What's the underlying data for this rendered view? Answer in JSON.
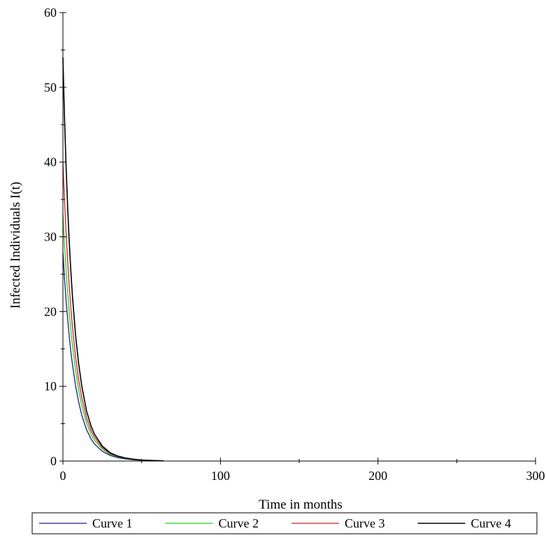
{
  "chart_data": {
    "type": "line",
    "title": "",
    "xlabel": "Time in months",
    "ylabel": "Infected Individuals I(t)",
    "xlim": [
      0,
      300
    ],
    "ylim": [
      0,
      60
    ],
    "xticks": [
      0,
      100,
      200,
      300
    ],
    "yticks": [
      0,
      10,
      20,
      30,
      40,
      50,
      60
    ],
    "grid": false,
    "legend_position": "bottom",
    "series": [
      {
        "name": "Curve 1",
        "color": "#1a1a8c",
        "x": [
          0,
          1,
          2,
          3,
          4,
          5,
          6,
          8,
          10,
          12,
          15,
          18,
          20,
          25,
          30,
          35,
          40,
          45,
          50,
          55,
          60,
          64
        ],
        "y": [
          28,
          24.5,
          21.5,
          19,
          16.7,
          14.7,
          13,
          10.1,
          7.9,
          6.1,
          4.2,
          2.9,
          2.3,
          1.3,
          0.75,
          0.45,
          0.27,
          0.17,
          0.1,
          0.06,
          0.04,
          0.03
        ]
      },
      {
        "name": "Curve 2",
        "color": "#22cc22",
        "x": [
          0,
          1,
          2,
          3,
          4,
          5,
          6,
          8,
          10,
          12,
          15,
          18,
          20,
          25,
          30,
          35,
          40,
          45,
          50,
          55,
          60,
          64
        ],
        "y": [
          33,
          29,
          25.6,
          22.6,
          19.9,
          17.6,
          15.6,
          12.2,
          9.5,
          7.4,
          5.1,
          3.5,
          2.8,
          1.6,
          0.9,
          0.55,
          0.33,
          0.2,
          0.12,
          0.07,
          0.05,
          0.03
        ]
      },
      {
        "name": "Curve 3",
        "color": "#cc2222",
        "x": [
          0,
          1,
          2,
          3,
          4,
          5,
          6,
          8,
          10,
          12,
          15,
          18,
          20,
          25,
          30,
          35,
          40,
          45,
          50,
          55,
          60,
          64
        ],
        "y": [
          40,
          35,
          30.6,
          26.8,
          23.5,
          20.6,
          18.1,
          14,
          10.9,
          8.5,
          5.8,
          4,
          3.2,
          1.8,
          1,
          0.6,
          0.36,
          0.22,
          0.13,
          0.08,
          0.05,
          0.03
        ]
      },
      {
        "name": "Curve 4",
        "color": "#000000",
        "x": [
          0,
          1,
          2,
          3,
          4,
          5,
          6,
          8,
          10,
          12,
          15,
          18,
          20,
          25,
          30,
          35,
          40,
          45,
          50,
          55,
          60,
          64
        ],
        "y": [
          54,
          46,
          39.5,
          34,
          29.4,
          25.5,
          22.2,
          16.9,
          13,
          10,
          6.7,
          4.6,
          3.6,
          2,
          1.1,
          0.65,
          0.39,
          0.24,
          0.14,
          0.09,
          0.05,
          0.03
        ]
      }
    ]
  }
}
